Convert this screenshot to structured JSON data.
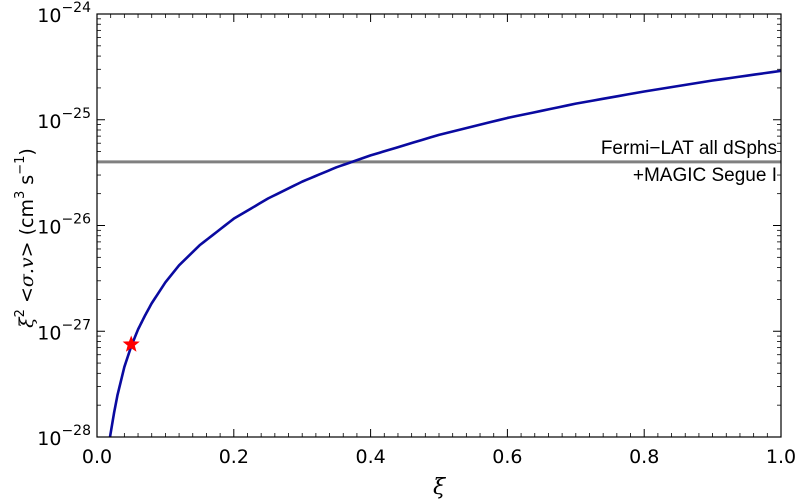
{
  "chart_data": {
    "type": "line",
    "title": "",
    "xlabel": "ξ",
    "ylabel": {
      "prefix": "ξ",
      "prefix_sup": "2",
      "middle": " <",
      "sigma": "σ",
      "dot_v": ".v",
      "close": "> (cm",
      "cm_sup": "3",
      "s": " s",
      "s_sup": "−1",
      "end": ")"
    },
    "xlim": [
      0.0,
      1.0
    ],
    "ylim": [
      1e-28,
      1e-24
    ],
    "yscale": "log",
    "grid": false,
    "x_ticks": [
      {
        "value": 0.0,
        "label": "0.0"
      },
      {
        "value": 0.2,
        "label": "0.2"
      },
      {
        "value": 0.4,
        "label": "0.4"
      },
      {
        "value": 0.6,
        "label": "0.6"
      },
      {
        "value": 0.8,
        "label": "0.8"
      },
      {
        "value": 1.0,
        "label": "1.0"
      }
    ],
    "y_ticks": [
      {
        "value": 1e-28,
        "base": "10",
        "exp": "−28"
      },
      {
        "value": 1e-27,
        "base": "10",
        "exp": "−27"
      },
      {
        "value": 1e-26,
        "base": "10",
        "exp": "−26"
      },
      {
        "value": 1e-25,
        "base": "10",
        "exp": "−25"
      },
      {
        "value": 1e-24,
        "base": "10",
        "exp": "−24"
      }
    ],
    "series": [
      {
        "color": "#0a0aa0",
        "x": [
          0.019,
          0.025,
          0.03,
          0.04,
          0.05,
          0.06,
          0.07,
          0.08,
          0.1,
          0.12,
          0.15,
          0.2,
          0.25,
          0.3,
          0.35,
          0.4,
          0.5,
          0.6,
          0.7,
          0.8,
          0.9,
          1.0
        ],
        "y": [
          1e-28,
          1.7e-28,
          2.5e-28,
          4.6e-28,
          7.2e-28,
          1.04e-27,
          1.4e-27,
          1.84e-27,
          2.9e-27,
          4.2e-27,
          6.5e-27,
          1.16e-26,
          1.8e-26,
          2.6e-26,
          3.55e-26,
          4.6e-26,
          7.2e-26,
          1.04e-25,
          1.42e-25,
          1.85e-25,
          2.35e-25,
          2.9e-25
        ]
      }
    ],
    "reference_lines": [
      {
        "y": 4e-26,
        "color": "#808080",
        "label_lines": [
          "Fermi−LAT all dSphs",
          "+MAGIC Segue I"
        ]
      }
    ],
    "markers": [
      {
        "x": 0.05,
        "y": 7.5e-28,
        "shape": "star",
        "color": "#ff0000"
      }
    ]
  }
}
